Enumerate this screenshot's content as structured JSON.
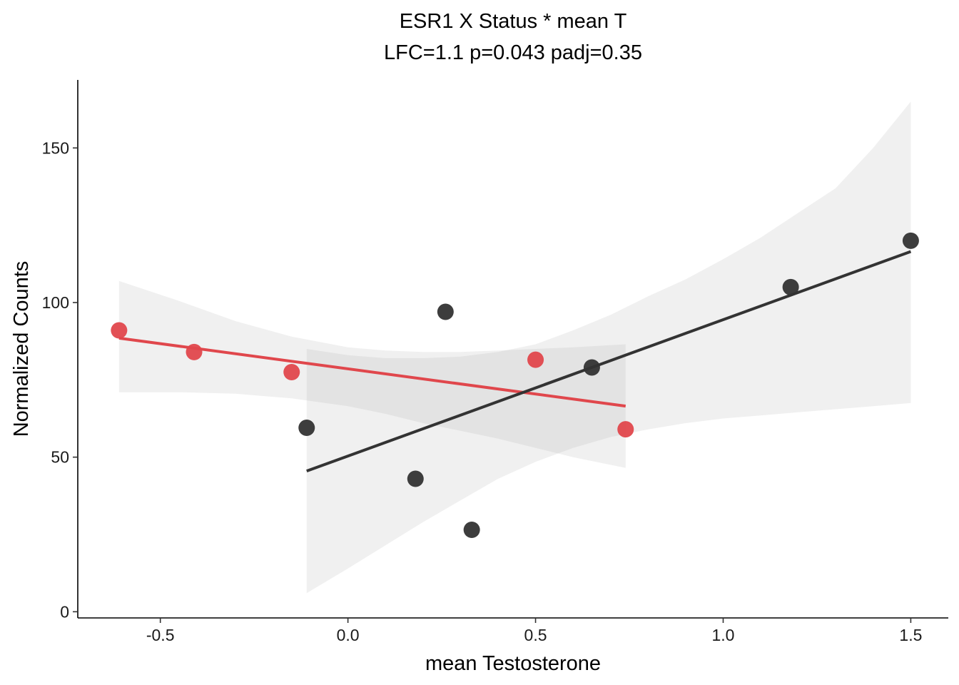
{
  "chart_data": {
    "type": "scatter",
    "title": "ESR1 X Status * mean T",
    "subtitle": "LFC=1.1 p=0.043 padj=0.35",
    "xlabel": "mean Testosterone",
    "ylabel": "Normalized Counts",
    "xlim": [
      -0.72,
      1.6
    ],
    "ylim": [
      -2,
      172
    ],
    "x_ticks": [
      -0.5,
      0.0,
      0.5,
      1.0,
      1.5
    ],
    "x_tick_labels": [
      "-0.5",
      "0.0",
      "0.5",
      "1.0",
      "1.5"
    ],
    "y_ticks": [
      0,
      50,
      100,
      150
    ],
    "y_tick_labels": [
      "0",
      "50",
      "100",
      "150"
    ],
    "grid": false,
    "legend": "none",
    "series": [
      {
        "color": "#e0474c",
        "points": [
          {
            "x": -0.61,
            "y": 91
          },
          {
            "x": -0.41,
            "y": 84
          },
          {
            "x": -0.15,
            "y": 77.5
          },
          {
            "x": 0.5,
            "y": 81.5
          },
          {
            "x": 0.74,
            "y": 59
          }
        ],
        "fit": {
          "x": [
            -0.61,
            0.74
          ],
          "y": [
            88.5,
            66.5
          ]
        },
        "ci": {
          "x": [
            -0.61,
            -0.45,
            -0.3,
            -0.15,
            0.0,
            0.1,
            0.2,
            0.3,
            0.4,
            0.5,
            0.6,
            0.74
          ],
          "upper": [
            107,
            100.5,
            94,
            89,
            85.5,
            84.5,
            84,
            84,
            84.5,
            85,
            85.5,
            86.5
          ],
          "lower": [
            71,
            71,
            70.5,
            69,
            66.5,
            64,
            61,
            58.5,
            56,
            53,
            50,
            46.5
          ]
        }
      },
      {
        "color": "#333333",
        "points": [
          {
            "x": -0.11,
            "y": 59.5
          },
          {
            "x": 0.18,
            "y": 43
          },
          {
            "x": 0.26,
            "y": 97
          },
          {
            "x": 0.33,
            "y": 26.5
          },
          {
            "x": 0.65,
            "y": 79
          },
          {
            "x": 1.18,
            "y": 105
          },
          {
            "x": 1.5,
            "y": 120
          }
        ],
        "fit": {
          "x": [
            -0.11,
            1.5
          ],
          "y": [
            45.5,
            116.5
          ]
        },
        "ci": {
          "x": [
            -0.11,
            0.0,
            0.1,
            0.2,
            0.3,
            0.4,
            0.5,
            0.6,
            0.7,
            0.8,
            0.9,
            1.0,
            1.1,
            1.2,
            1.3,
            1.4,
            1.5
          ],
          "upper": [
            85,
            83,
            82,
            82,
            82.5,
            84,
            86.5,
            91,
            96,
            102,
            107.5,
            114,
            121,
            129,
            137,
            150,
            165
          ],
          "lower": [
            6,
            14,
            21.5,
            29,
            36,
            43,
            48.5,
            53,
            56.5,
            59,
            61,
            62.5,
            63.5,
            64.5,
            65.5,
            66.5,
            67.5
          ]
        }
      }
    ]
  }
}
